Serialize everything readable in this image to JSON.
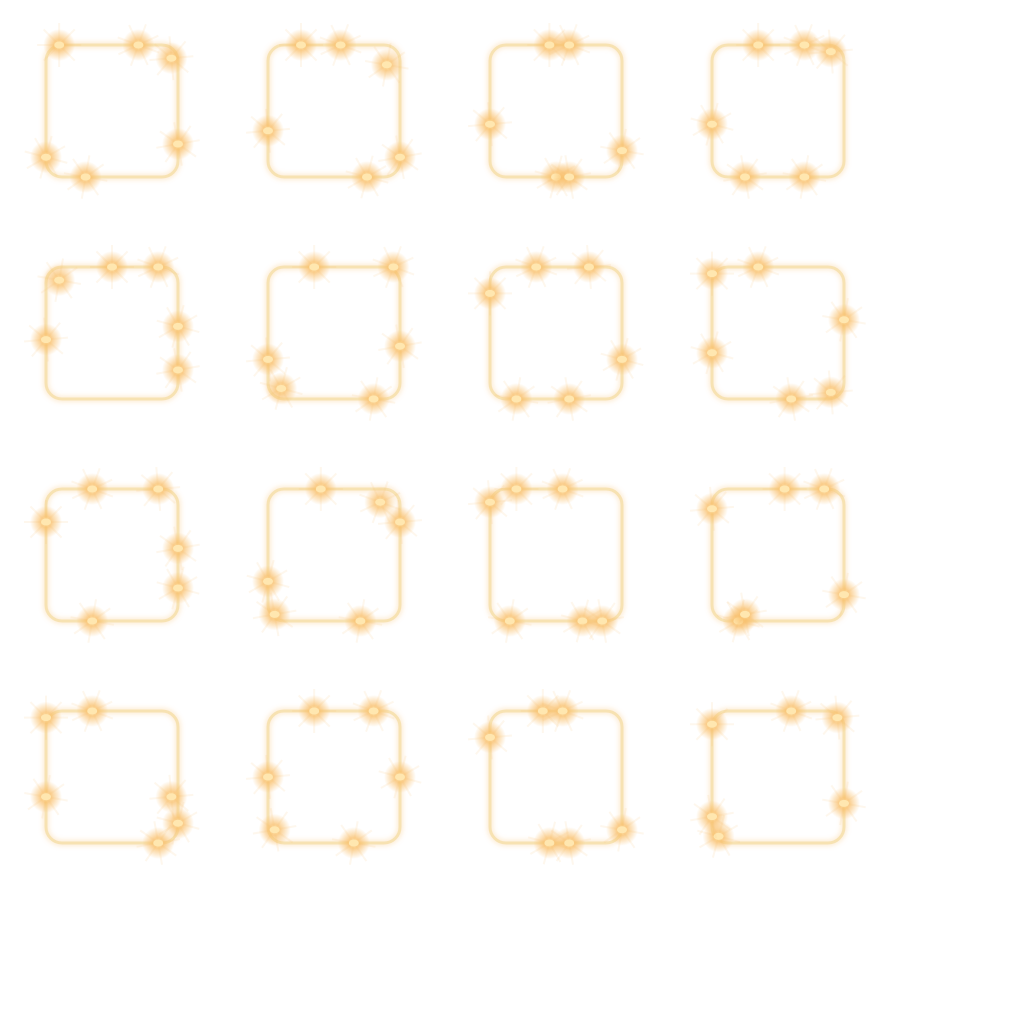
{
  "sprite_sheet": {
    "frame_count": 16,
    "grid": {
      "columns": 4,
      "rows": 4
    },
    "colors": {
      "background": "#ffffff",
      "border": "#f7e2b2",
      "glow": "#f9c06c",
      "spark_core": "#ffe7b0"
    },
    "frames": [
      {
        "sparks": [
          [
            0.1,
            0.0
          ],
          [
            0.7,
            0.0
          ],
          [
            0.95,
            0.1
          ],
          [
            0.0,
            0.85
          ],
          [
            1.0,
            0.75
          ],
          [
            0.3,
            1.0
          ]
        ]
      },
      {
        "sparks": [
          [
            0.25,
            0.0
          ],
          [
            0.55,
            0.0
          ],
          [
            0.0,
            0.65
          ],
          [
            0.75,
            1.0
          ],
          [
            1.0,
            0.85
          ],
          [
            0.9,
            0.15
          ]
        ]
      },
      {
        "sparks": [
          [
            0.45,
            0.0
          ],
          [
            0.6,
            0.0
          ],
          [
            0.0,
            0.6
          ],
          [
            0.5,
            1.0
          ],
          [
            0.6,
            1.0
          ],
          [
            1.0,
            0.8
          ]
        ]
      },
      {
        "sparks": [
          [
            0.35,
            0.0
          ],
          [
            0.7,
            0.0
          ],
          [
            0.9,
            0.05
          ],
          [
            0.0,
            0.6
          ],
          [
            0.25,
            1.0
          ],
          [
            0.7,
            1.0
          ]
        ]
      },
      {
        "sparks": [
          [
            0.5,
            0.0
          ],
          [
            0.85,
            0.0
          ],
          [
            0.0,
            0.55
          ],
          [
            1.0,
            0.45
          ],
          [
            1.0,
            0.78
          ],
          [
            0.1,
            0.1
          ]
        ]
      },
      {
        "sparks": [
          [
            0.35,
            0.0
          ],
          [
            0.95,
            0.0
          ],
          [
            0.0,
            0.7
          ],
          [
            0.1,
            0.92
          ],
          [
            1.0,
            0.6
          ],
          [
            0.8,
            1.0
          ]
        ]
      },
      {
        "sparks": [
          [
            0.0,
            0.2
          ],
          [
            0.35,
            0.0
          ],
          [
            0.75,
            0.0
          ],
          [
            1.0,
            0.7
          ],
          [
            0.6,
            1.0
          ],
          [
            0.2,
            1.0
          ]
        ]
      },
      {
        "sparks": [
          [
            0.0,
            0.05
          ],
          [
            0.35,
            0.0
          ],
          [
            0.9,
            0.95
          ],
          [
            0.0,
            0.65
          ],
          [
            0.6,
            1.0
          ],
          [
            1.0,
            0.4
          ]
        ]
      },
      {
        "sparks": [
          [
            0.0,
            0.25
          ],
          [
            0.35,
            0.0
          ],
          [
            0.85,
            0.0
          ],
          [
            1.0,
            0.75
          ],
          [
            1.0,
            0.45
          ],
          [
            0.35,
            1.0
          ]
        ]
      },
      {
        "sparks": [
          [
            0.4,
            0.0
          ],
          [
            0.85,
            0.1
          ],
          [
            1.0,
            0.25
          ],
          [
            0.0,
            0.7
          ],
          [
            0.05,
            0.95
          ],
          [
            0.7,
            1.0
          ]
        ]
      },
      {
        "sparks": [
          [
            0.2,
            0.0
          ],
          [
            0.55,
            0.0
          ],
          [
            0.0,
            0.1
          ],
          [
            0.7,
            1.0
          ],
          [
            0.85,
            1.0
          ],
          [
            0.15,
            1.0
          ]
        ]
      },
      {
        "sparks": [
          [
            0.55,
            0.0
          ],
          [
            0.85,
            0.0
          ],
          [
            0.0,
            0.15
          ],
          [
            0.2,
            1.0
          ],
          [
            0.25,
            0.95
          ],
          [
            1.0,
            0.8
          ]
        ]
      },
      {
        "sparks": [
          [
            0.0,
            0.05
          ],
          [
            0.35,
            0.0
          ],
          [
            0.95,
            0.65
          ],
          [
            1.0,
            0.85
          ],
          [
            0.85,
            1.0
          ],
          [
            0.0,
            0.65
          ]
        ]
      },
      {
        "sparks": [
          [
            0.35,
            0.0
          ],
          [
            0.8,
            0.0
          ],
          [
            0.0,
            0.5
          ],
          [
            1.0,
            0.5
          ],
          [
            0.05,
            0.9
          ],
          [
            0.65,
            1.0
          ]
        ]
      },
      {
        "sparks": [
          [
            0.4,
            0.0
          ],
          [
            0.55,
            0.0
          ],
          [
            0.0,
            0.2
          ],
          [
            0.45,
            1.0
          ],
          [
            0.6,
            1.0
          ],
          [
            1.0,
            0.9
          ]
        ]
      },
      {
        "sparks": [
          [
            0.0,
            0.1
          ],
          [
            0.6,
            0.0
          ],
          [
            0.95,
            0.05
          ],
          [
            0.05,
            0.95
          ],
          [
            0.0,
            0.8
          ],
          [
            1.0,
            0.7
          ]
        ]
      }
    ]
  }
}
